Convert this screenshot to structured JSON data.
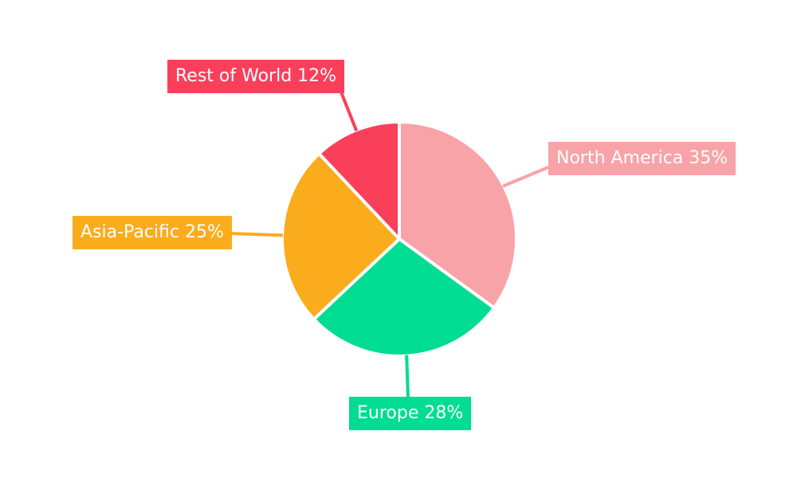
{
  "chart_data": {
    "type": "pie",
    "title": "",
    "labels": [
      "North America",
      "Europe",
      "Asia-Pacific",
      "Rest of World"
    ],
    "values": [
      35,
      28,
      25,
      12
    ],
    "unit": "%",
    "display_labels": [
      "North America 35%",
      "Europe 28%",
      "Asia-Pacific 25%",
      "Rest of World 12%"
    ],
    "colors": [
      "#F8A3A8",
      "#00DC92",
      "#FBAC1C",
      "#FA3F5B"
    ],
    "slice_divider_color": "#ffffff",
    "background": "#ffffff",
    "start_angle_deg": 0,
    "direction": "clockwise",
    "legend_position": "none",
    "label_style": "callout-boxes-with-leader-lines"
  }
}
